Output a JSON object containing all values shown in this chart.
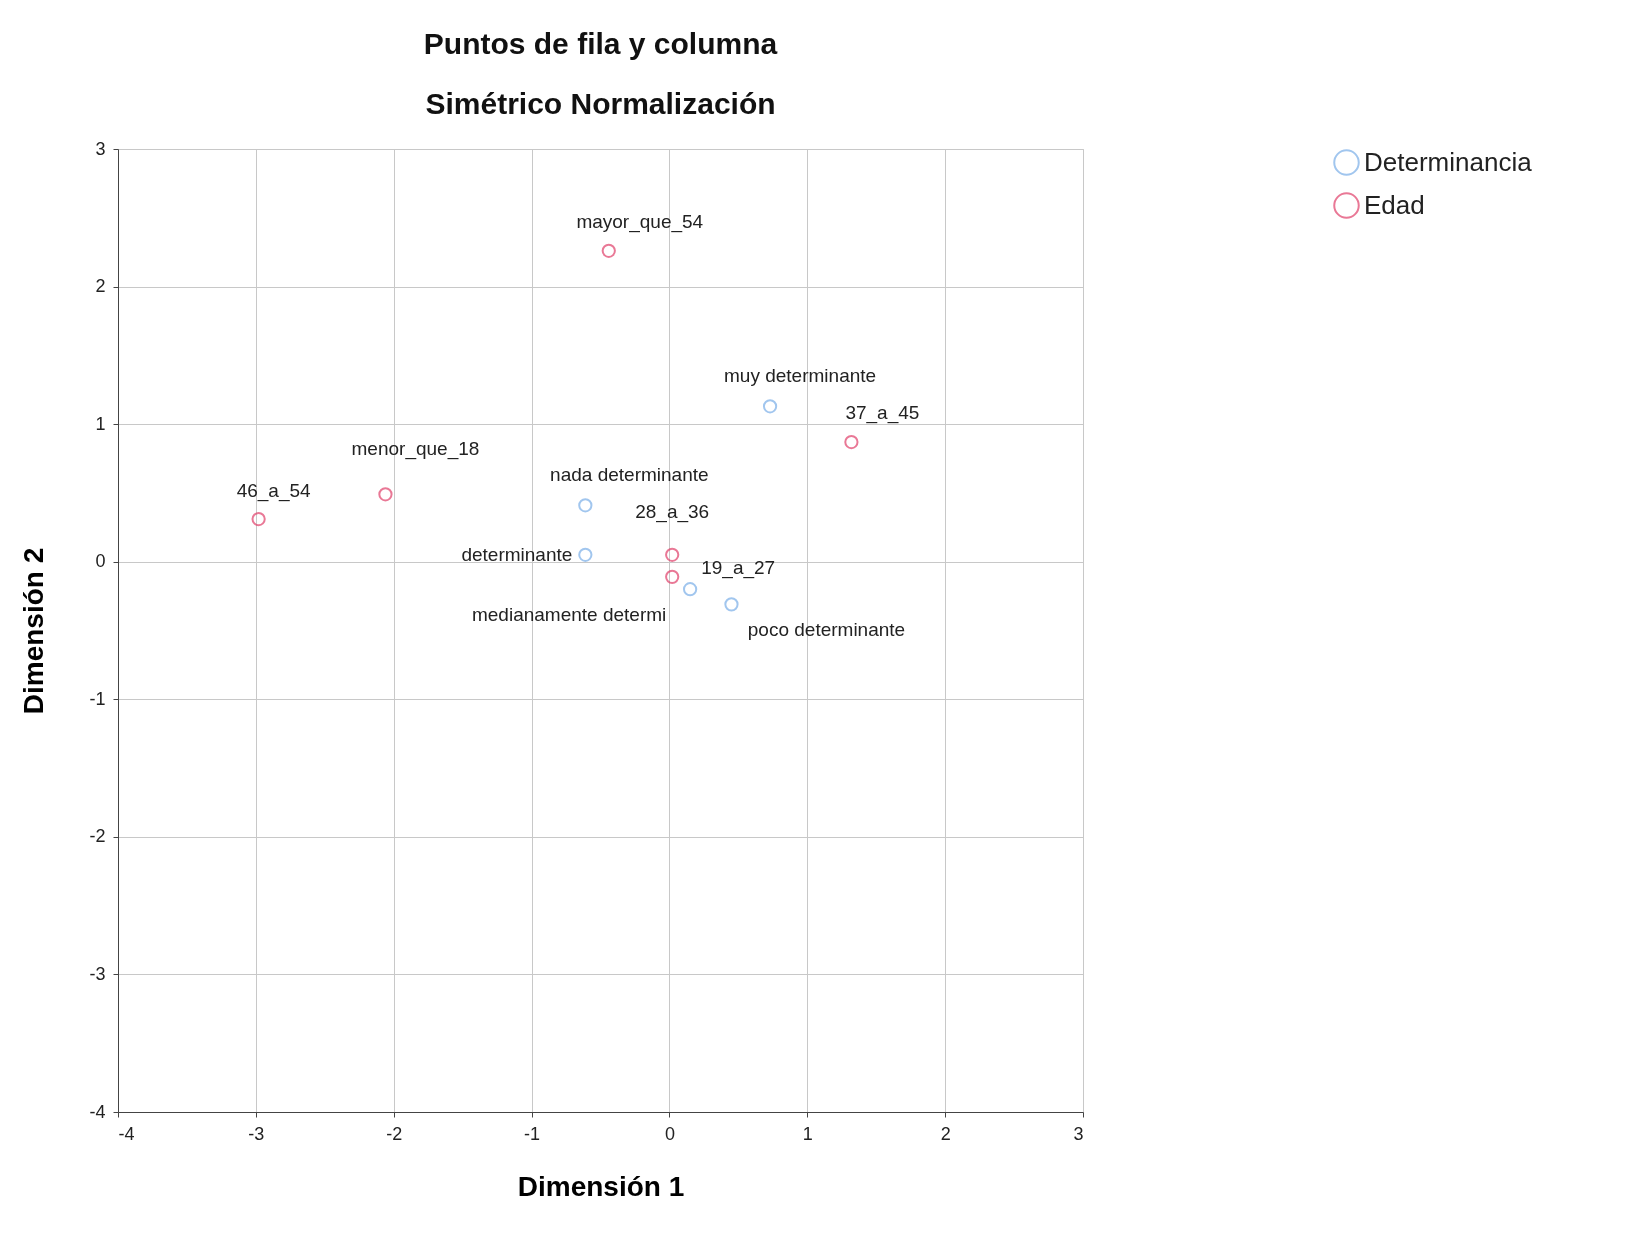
{
  "chart_data": {
    "type": "scatter",
    "title": "Puntos de fila y columna",
    "subtitle": "Simétrico Normalización",
    "xlabel": "Dimensión 1",
    "ylabel": "Dimensión 2",
    "xlim": [
      -4,
      3
    ],
    "ylim": [
      -4,
      3
    ],
    "xticks": [
      -4,
      -3,
      -2,
      -1,
      0,
      1,
      2,
      3
    ],
    "yticks": [
      -4,
      -3,
      -2,
      -1,
      0,
      1,
      2,
      3
    ],
    "grid": true,
    "legend": "top right",
    "marker": "circle",
    "series": [
      {
        "name": "Determinancia",
        "color": "#7aaee8",
        "x": [
          0.73,
          -0.61,
          -0.61,
          0.15,
          0.45
        ],
        "values": [
          1.13,
          0.41,
          0.05,
          -0.2,
          -0.31
        ]
      },
      {
        "name": "Edad",
        "color": "#e0406a",
        "x": [
          -0.44,
          1.32,
          -2.06,
          -2.98,
          0.02,
          0.02
        ],
        "values": [
          2.26,
          0.87,
          0.49,
          0.31,
          0.05,
          -0.11
        ]
      }
    ],
    "annotations": [
      {
        "text": "mayor_que_54",
        "x": -0.44,
        "y": 2.26
      },
      {
        "text": "37_a_45",
        "x": 1.32,
        "y": 0.87
      },
      {
        "text": "menor_que_18",
        "x": -2.06,
        "y": 0.49
      },
      {
        "text": "46_a_54",
        "x": -2.98,
        "y": 0.31
      },
      {
        "text": "28_a_36",
        "x": 0.02,
        "y": 0.05
      },
      {
        "text": "19_a_27",
        "x": 0.02,
        "y": -0.11
      },
      {
        "text": "muy determinante",
        "x": 0.73,
        "y": 1.13
      },
      {
        "text": "nada determinante",
        "x": -0.61,
        "y": 0.41
      },
      {
        "text": "determinante",
        "x": -0.61,
        "y": 0.05
      },
      {
        "text": "medianamente determi",
        "x": 0.15,
        "y": -0.2
      },
      {
        "text": "poco determinante",
        "x": 0.45,
        "y": -0.31
      }
    ]
  }
}
